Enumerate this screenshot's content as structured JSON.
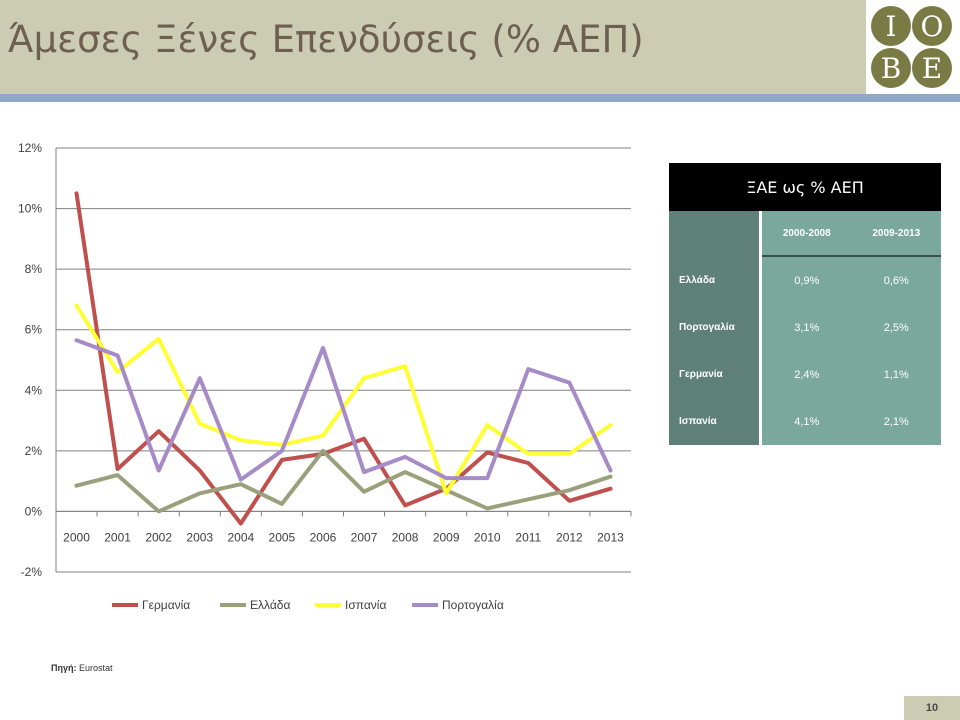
{
  "header": {
    "title": "Άμεσες Ξένες Επενδύσεις (% ΑΕΠ)",
    "logo_letters": [
      "I",
      "O",
      "B",
      "E"
    ]
  },
  "colors": {
    "header_bg": "#cbccb1",
    "header_bar": "#8eaac6",
    "logo_circle": "#7a7a45"
  },
  "chart_data": {
    "type": "line",
    "categories": [
      "2000",
      "2001",
      "2002",
      "2003",
      "2004",
      "2005",
      "2006",
      "2007",
      "2008",
      "2009",
      "2010",
      "2011",
      "2012",
      "2013"
    ],
    "y_ticks": [
      "-2%",
      "0%",
      "2%",
      "4%",
      "6%",
      "8%",
      "10%",
      "12%"
    ],
    "ylim": [
      -2,
      12
    ],
    "grid": true,
    "legend_position": "bottom",
    "series": [
      {
        "name": "Γερμανία",
        "color": "#c0504d",
        "values": [
          10.5,
          1.4,
          2.65,
          1.35,
          -0.4,
          1.7,
          1.9,
          2.4,
          0.2,
          0.75,
          1.95,
          1.6,
          0.35,
          0.75
        ]
      },
      {
        "name": "Ελλάδα",
        "color": "#9aa07b",
        "values": [
          0.85,
          1.2,
          0.0,
          0.6,
          0.9,
          0.25,
          2.0,
          0.65,
          1.3,
          0.7,
          0.1,
          0.4,
          0.7,
          1.15
        ]
      },
      {
        "name": "Ισπανία",
        "color": "#ffff33",
        "values": [
          6.8,
          4.6,
          5.7,
          2.9,
          2.35,
          2.2,
          2.5,
          4.4,
          4.8,
          0.6,
          2.85,
          1.9,
          1.9,
          2.85
        ]
      },
      {
        "name": "Πορτογαλία",
        "color": "#a68bc7",
        "values": [
          5.65,
          5.15,
          1.35,
          4.4,
          1.05,
          2.0,
          5.4,
          1.3,
          1.8,
          1.1,
          1.1,
          4.7,
          4.25,
          1.35
        ]
      }
    ]
  },
  "table": {
    "title": "ΞΑΕ ως % ΑΕΠ",
    "headers": [
      "2000-2008",
      "2009-2013"
    ],
    "rows": [
      {
        "label": "Ελλάδα",
        "values": [
          "0,9%",
          "0,6%"
        ]
      },
      {
        "label": "Πορτογαλία",
        "values": [
          "3,1%",
          "2,5%"
        ]
      },
      {
        "label": "Γερμανία",
        "values": [
          "2,4%",
          "1,1%"
        ]
      },
      {
        "label": "Ισπανία",
        "values": [
          "4,1%",
          "2,1%"
        ]
      }
    ]
  },
  "source": {
    "label": "Πηγή:",
    "text": "Eurostat"
  },
  "page_number": "10"
}
